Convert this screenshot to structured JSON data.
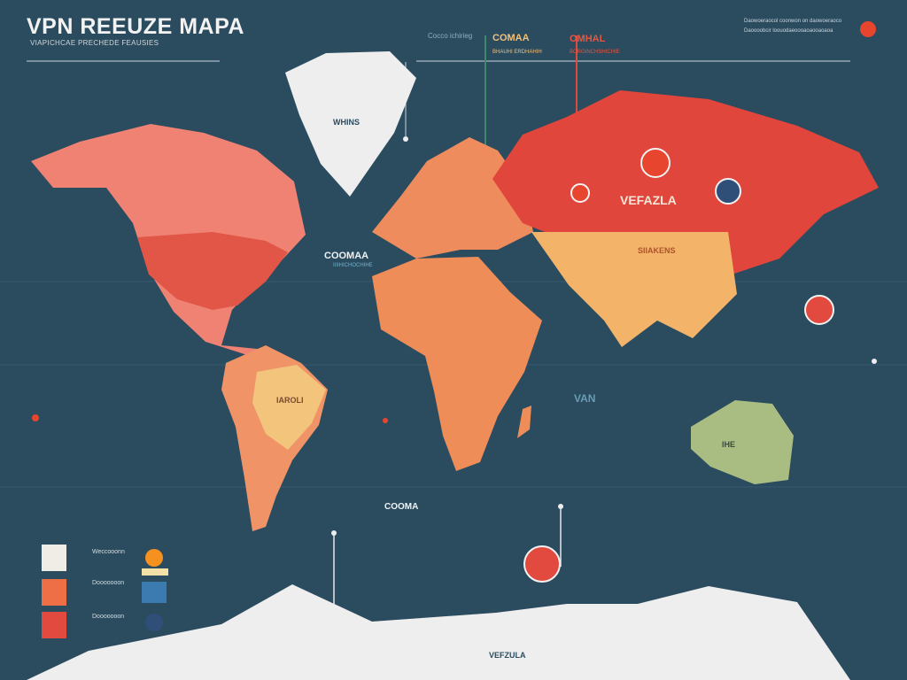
{
  "header": {
    "title": "VPN REEUZE MAPA",
    "subtitle": "VIAPICHCAE PRECHEDE FEAUSIES",
    "callout_left": "Cocco ichirieg",
    "callout_mid": "COMAA",
    "callout_mid_sub": "BHAUHI ERDHAHIH",
    "callout_right": "OMHAL",
    "callout_right_sub": "BORGINCHSHICHIE",
    "note_line1": "Daowoeraocol coonwon on daowoeraoco",
    "note_line2": "Daoooobcir loouodaeoooaoaooaoaoa"
  },
  "map_labels": {
    "greenland": "WHINS",
    "russia": "VEFAZLA",
    "south_asia": "SIIAKENS",
    "atlantic": "COOMAA",
    "atlantic_sub": "IIIIHICHOCHIHE",
    "brazil": "IAROLI",
    "indian_ocean": "VAN",
    "australia": "IHE",
    "southern_ocean": "COOMA",
    "antarctica": "VEFZULA"
  },
  "legend": [
    {
      "label": "Weccooonn",
      "color": "#f0ece6"
    },
    {
      "label": "Dooooooon",
      "color": "#ee6e45"
    },
    {
      "label": "Dooooooon",
      "color": "#e24a40"
    }
  ],
  "colors": {
    "ocean": "#2b4b5f",
    "north_america": "#ef8272",
    "usa": "#e15647",
    "south_america": "#f09468",
    "brazil": "#f2c47c",
    "europe": "#ee8c5e",
    "africa": "#ee8d58",
    "russia": "#e0463b",
    "south_asia": "#f3b46a",
    "australia": "#a9bd82",
    "ice": "#eeeeee",
    "accent": "#e8452f"
  }
}
